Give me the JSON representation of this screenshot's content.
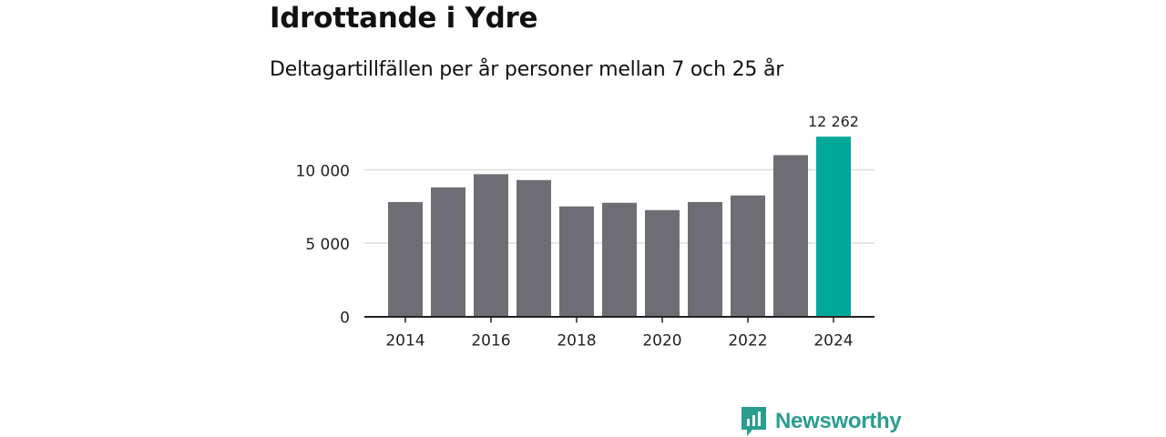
{
  "header": {
    "title": "Idrottande i Ydre",
    "subtitle": "Deltagartillfällen per år personer mellan 7 och 25 år"
  },
  "chart_data": {
    "type": "bar",
    "categories": [
      "2014",
      "2015",
      "2016",
      "2017",
      "2018",
      "2019",
      "2020",
      "2021",
      "2022",
      "2023",
      "2024"
    ],
    "values": [
      7800,
      8800,
      9700,
      9300,
      7500,
      7750,
      7250,
      7800,
      8250,
      11000,
      12262
    ],
    "x_tick_labels": [
      "2014",
      "2016",
      "2018",
      "2020",
      "2022",
      "2024"
    ],
    "y_ticks": [
      {
        "value": 0,
        "label": "0"
      },
      {
        "value": 5000,
        "label": "5 000"
      },
      {
        "value": 10000,
        "label": "10 000"
      }
    ],
    "ylim": [
      0,
      13000
    ],
    "highlight": {
      "category": "2024",
      "label": "12 262"
    },
    "grid": true,
    "colors": {
      "bar": "#6e6d74",
      "highlight": "#00a899",
      "grid": "#dddddd",
      "axis": "#222222"
    }
  },
  "brand": {
    "name": "Newsworthy",
    "icon": "newsworthy-logo-icon",
    "color": "#2a9d8f"
  }
}
